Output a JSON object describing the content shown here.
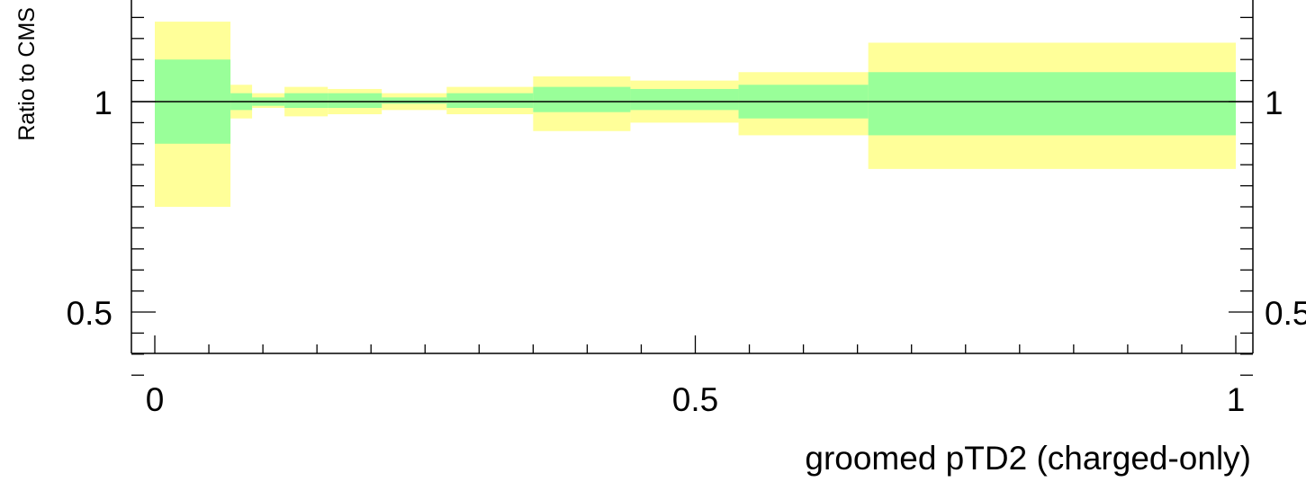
{
  "chart_data": {
    "type": "area",
    "title": "",
    "xlabel": "groomed pTD2 (charged-only)",
    "ylabel": "Ratio to CMS",
    "xlim": [
      -0.02,
      1.0
    ],
    "ylim": [
      0.335,
      1.24
    ],
    "x_ticks": [
      {
        "value": 0,
        "label": "0"
      },
      {
        "value": 0.5,
        "label": "0.5"
      },
      {
        "value": 1,
        "label": "1"
      }
    ],
    "y_ticks": [
      {
        "value": 1,
        "label": "1"
      },
      {
        "value": 0.5,
        "label": "0.5"
      }
    ],
    "y_ticks_right": [
      {
        "value": 1,
        "label": "1"
      },
      {
        "value": 0.5,
        "label": "0.5"
      }
    ],
    "reference_line": 1.0,
    "grid": false,
    "legend": "none",
    "band_colors": {
      "inner": "#99ff99",
      "outer": "#ffff99",
      "line": "#000000"
    },
    "bins": [
      {
        "x_low": 0.0,
        "x_high": 0.07,
        "inner_low": 0.9,
        "inner_high": 1.1,
        "outer_low": 0.75,
        "outer_high": 1.19
      },
      {
        "x_low": 0.07,
        "x_high": 0.09,
        "inner_low": 0.98,
        "inner_high": 1.02,
        "outer_low": 0.96,
        "outer_high": 1.04
      },
      {
        "x_low": 0.09,
        "x_high": 0.12,
        "inner_low": 0.99,
        "inner_high": 1.01,
        "outer_low": 0.985,
        "outer_high": 1.02
      },
      {
        "x_low": 0.12,
        "x_high": 0.16,
        "inner_low": 0.985,
        "inner_high": 1.02,
        "outer_low": 0.965,
        "outer_high": 1.035
      },
      {
        "x_low": 0.16,
        "x_high": 0.21,
        "inner_low": 0.985,
        "inner_high": 1.02,
        "outer_low": 0.97,
        "outer_high": 1.03
      },
      {
        "x_low": 0.21,
        "x_high": 0.27,
        "inner_low": 0.995,
        "inner_high": 1.01,
        "outer_low": 0.98,
        "outer_high": 1.02
      },
      {
        "x_low": 0.27,
        "x_high": 0.35,
        "inner_low": 0.985,
        "inner_high": 1.02,
        "outer_low": 0.97,
        "outer_high": 1.035
      },
      {
        "x_low": 0.35,
        "x_high": 0.44,
        "inner_low": 0.975,
        "inner_high": 1.035,
        "outer_low": 0.93,
        "outer_high": 1.06
      },
      {
        "x_low": 0.44,
        "x_high": 0.54,
        "inner_low": 0.98,
        "inner_high": 1.03,
        "outer_low": 0.95,
        "outer_high": 1.05
      },
      {
        "x_low": 0.54,
        "x_high": 0.66,
        "inner_low": 0.96,
        "inner_high": 1.04,
        "outer_low": 0.92,
        "outer_high": 1.07
      },
      {
        "x_low": 0.66,
        "x_high": 1.0,
        "inner_low": 0.92,
        "inner_high": 1.07,
        "outer_low": 0.84,
        "outer_high": 1.14
      }
    ]
  }
}
